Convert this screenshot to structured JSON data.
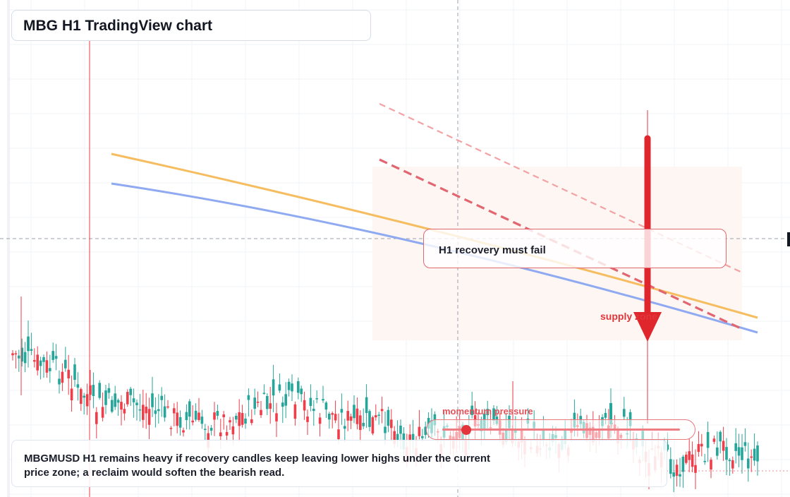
{
  "header": {
    "title": "MBG H1 TradingView chart"
  },
  "annotations": {
    "callout_text": "H1 recovery must fail",
    "zone_label": "supply zone",
    "momentum_label": "momentum pressure",
    "momentum_level": 0.1
  },
  "note": {
    "text": "MBGMUSD H1 remains heavy if recovery candles keep leaving lower highs under the current price zone; a reclaim would soften the bearish read."
  },
  "colors": {
    "bull_candle": "#26a69a",
    "bear_candle": "#ef3d4a",
    "orange_ma": "#f6bd60",
    "blue_ma": "#8faaf0",
    "bearish_accent": "#e0262d",
    "supply_zone_fill": "#fdf6f3"
  },
  "icons": {
    "bearish_arrow": "arrow-down-icon",
    "momentum_knob": "slider-knob-icon"
  }
}
